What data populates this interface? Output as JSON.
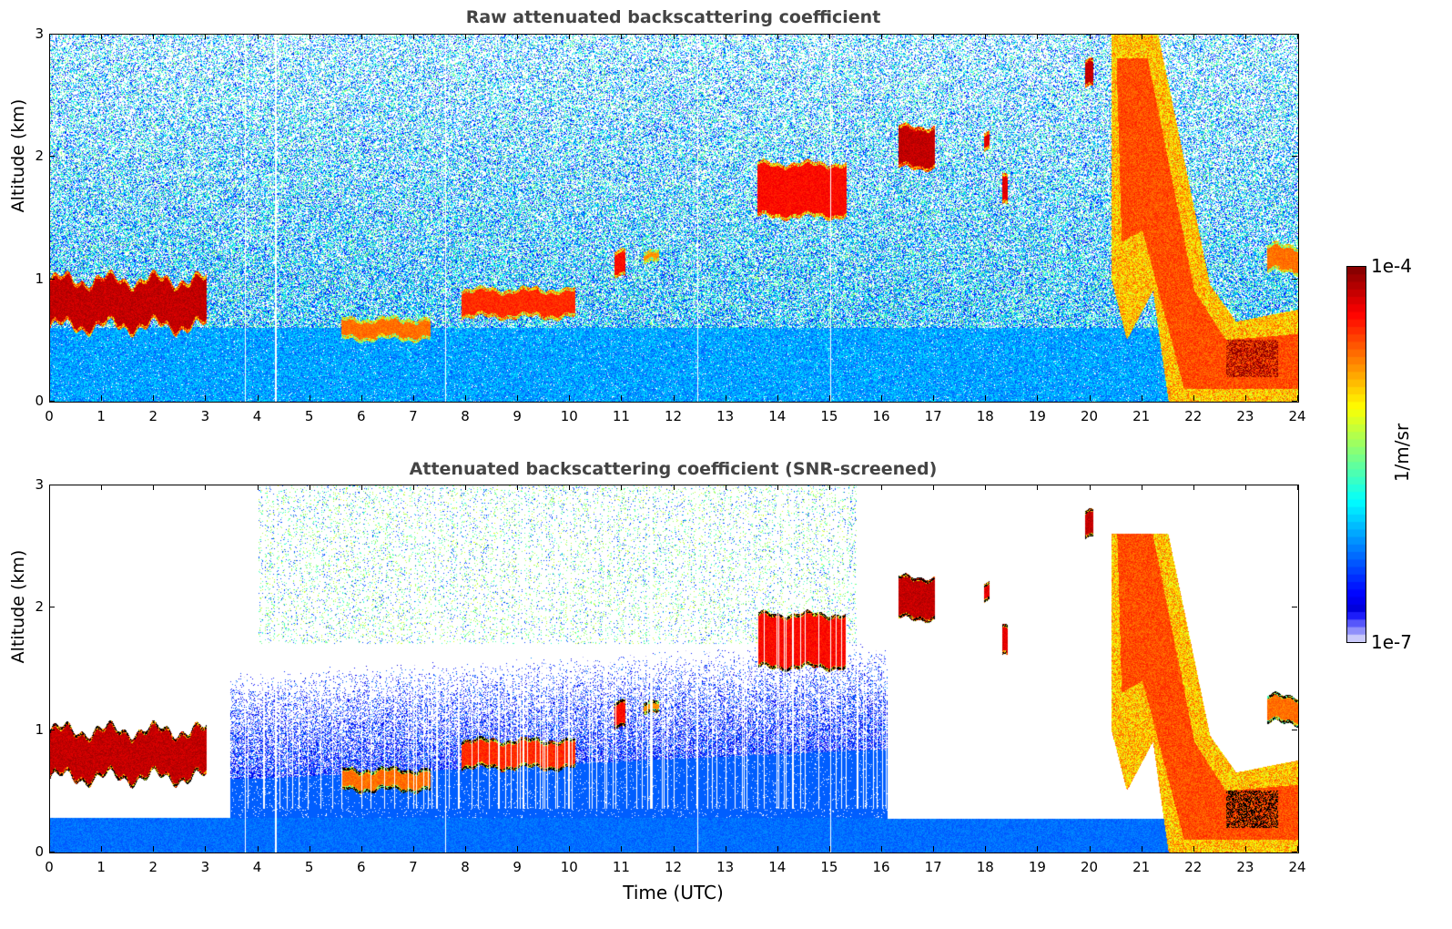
{
  "chart_data": [
    {
      "type": "heatmap",
      "title": "Raw attenuated backscattering coefficient",
      "xlabel": "",
      "ylabel": "Altitude (km)",
      "xlim": [
        0,
        24
      ],
      "ylim": [
        0,
        3
      ],
      "xticks": [
        "0",
        "1",
        "2",
        "3",
        "4",
        "5",
        "6",
        "7",
        "8",
        "9",
        "10",
        "11",
        "12",
        "13",
        "14",
        "15",
        "16",
        "17",
        "18",
        "19",
        "20",
        "21",
        "22",
        "23",
        "24"
      ],
      "yticks": [
        "0",
        "1",
        "2",
        "3"
      ],
      "screened": false,
      "data_gaps_utc": [
        3.75,
        4.33,
        7.6,
        12.45,
        15.0
      ]
    },
    {
      "type": "heatmap",
      "title": "Attenuated backscattering coefficient (SNR-screened)",
      "xlabel": "Time (UTC)",
      "ylabel": "Altitude (km)",
      "xlim": [
        0,
        24
      ],
      "ylim": [
        0,
        3
      ],
      "xticks": [
        "0",
        "1",
        "2",
        "3",
        "4",
        "5",
        "6",
        "7",
        "8",
        "9",
        "10",
        "11",
        "12",
        "13",
        "14",
        "15",
        "16",
        "17",
        "18",
        "19",
        "20",
        "21",
        "22",
        "23",
        "24"
      ],
      "yticks": [
        "0",
        "1",
        "2",
        "3"
      ],
      "screened": true,
      "data_gaps_utc": [
        3.75,
        4.33,
        7.6,
        12.45,
        15.0
      ]
    }
  ],
  "features_log10_beta": [
    {
      "t": [
        0,
        3.0
      ],
      "z": [
        0.6,
        1.0
      ],
      "v": -4.1
    },
    {
      "t": [
        5.6,
        7.3
      ],
      "z": [
        0.5,
        0.68
      ],
      "v": -4.6
    },
    {
      "t": [
        7.9,
        10.1
      ],
      "z": [
        0.68,
        0.92
      ],
      "v": -4.4
    },
    {
      "t": [
        10.85,
        11.05
      ],
      "z": [
        1.0,
        1.22
      ],
      "v": -4.3
    },
    {
      "t": [
        11.4,
        11.7
      ],
      "z": [
        1.15,
        1.25
      ],
      "v": -4.7
    },
    {
      "t": [
        13.6,
        15.3
      ],
      "z": [
        1.5,
        1.95
      ],
      "v": -4.3
    },
    {
      "t": [
        16.3,
        17.0
      ],
      "z": [
        1.9,
        2.25
      ],
      "v": -4.1
    },
    {
      "t": [
        17.95,
        18.05
      ],
      "z": [
        2.05,
        2.2
      ],
      "v": -4.2
    },
    {
      "t": [
        18.3,
        18.4
      ],
      "z": [
        1.6,
        1.85
      ],
      "v": -4.2
    },
    {
      "t": [
        19.9,
        20.05
      ],
      "z": [
        2.55,
        2.78
      ],
      "v": -4.1
    },
    {
      "t": [
        23.4,
        24
      ],
      "z": [
        1.05,
        1.28
      ],
      "v": -4.6
    }
  ],
  "plume_outline_utc_km": [
    [
      20.4,
      3
    ],
    [
      21.3,
      3
    ],
    [
      22.3,
      0.95
    ],
    [
      22.8,
      0.65
    ],
    [
      24,
      0.75
    ],
    [
      24,
      0
    ],
    [
      21.5,
      0
    ],
    [
      21.2,
      0.9
    ],
    [
      20.7,
      0.5
    ],
    [
      20.4,
      1.0
    ]
  ],
  "plume_core_utc_km": [
    [
      20.5,
      2.8
    ],
    [
      21.1,
      2.8
    ],
    [
      22.0,
      0.9
    ],
    [
      22.6,
      0.5
    ],
    [
      24,
      0.55
    ],
    [
      24,
      0.1
    ],
    [
      21.8,
      0.1
    ],
    [
      21.0,
      1.4
    ],
    [
      20.6,
      1.3
    ]
  ],
  "colorbar": {
    "label": "1/m/sr",
    "min_label": "1e-7",
    "max_label": "1e-4",
    "range_log10": [
      -7,
      -4
    ]
  }
}
